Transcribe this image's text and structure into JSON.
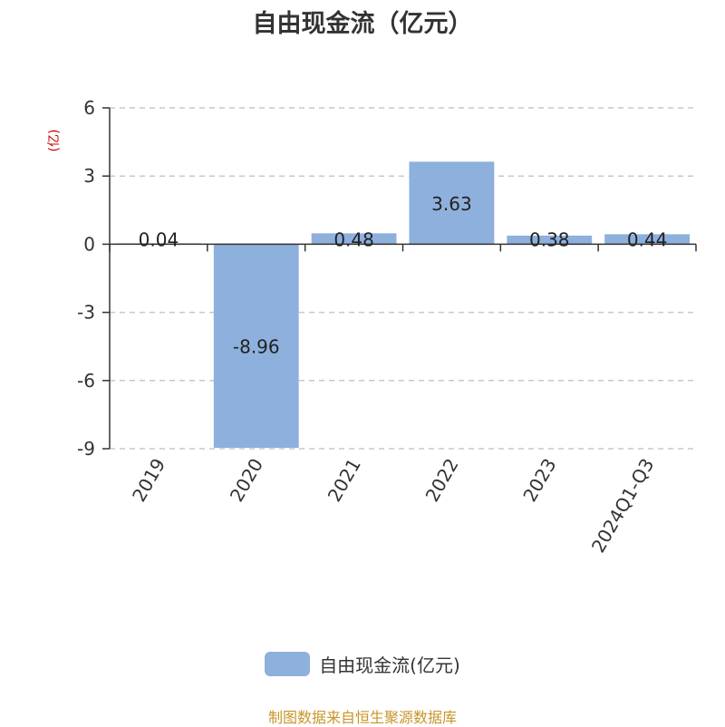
{
  "title": "自由现金流（亿元）",
  "chart_data": {
    "type": "bar",
    "title": "自由现金流（亿元）",
    "ylabel": "(亿)",
    "categories": [
      "2019",
      "2020",
      "2021",
      "2022",
      "2023",
      "2024Q1-Q3"
    ],
    "series": [
      {
        "name": "自由现金流(亿元)",
        "values": [
          0.04,
          -8.96,
          0.48,
          3.63,
          0.38,
          0.44
        ]
      }
    ],
    "data_labels": [
      "0.04",
      "-8.96",
      "0.48",
      "3.63",
      "0.38",
      "0.44"
    ],
    "ylim": [
      -9,
      6
    ],
    "yticks": [
      6,
      3,
      0,
      -3,
      -6,
      -9
    ],
    "grid": true,
    "legend": "bottom-center",
    "bar_color": "#8eb0dc"
  },
  "legend_label": "自由现金流(亿元)",
  "source": "制图数据来自恒生聚源数据库"
}
